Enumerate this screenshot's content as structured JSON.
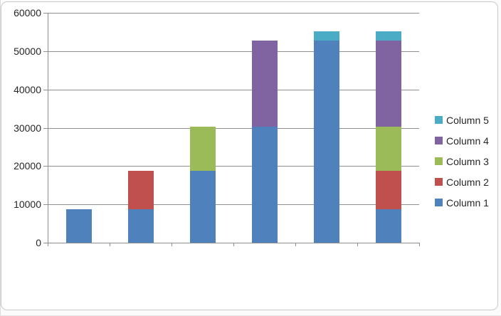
{
  "chart_data": {
    "type": "bar",
    "stacked": true,
    "title": "",
    "xlabel": "",
    "ylabel": "",
    "categories": [
      "",
      "",
      "",
      "",
      "",
      ""
    ],
    "series": [
      {
        "name": "Column 1",
        "color": "#4f81bd",
        "values": [
          8700,
          8700,
          18700,
          30200,
          52800,
          8700
        ]
      },
      {
        "name": "Column 2",
        "color": "#c0504d",
        "values": [
          0,
          10000,
          0,
          0,
          0,
          10000
        ]
      },
      {
        "name": "Column 3",
        "color": "#9bbb59",
        "values": [
          0,
          0,
          11500,
          0,
          0,
          11500
        ]
      },
      {
        "name": "Column 4",
        "color": "#8064a2",
        "values": [
          0,
          0,
          0,
          22600,
          0,
          22600
        ]
      },
      {
        "name": "Column 5",
        "color": "#4bacc6",
        "values": [
          0,
          0,
          0,
          0,
          2400,
          2400
        ]
      }
    ],
    "bar_totals": [
      8700,
      18700,
      30200,
      52800,
      55200,
      55200
    ],
    "ylim": [
      0,
      60000
    ],
    "ytick_step": 10000,
    "ytick_labels": [
      "0",
      "10000",
      "20000",
      "30000",
      "40000",
      "50000",
      "60000"
    ],
    "grid": true,
    "gridline_color": "#8f8f8f",
    "axis_color": "#8f8f8f",
    "text_color": "#262626",
    "legend": {
      "position": "right",
      "entries": [
        "Column 5",
        "Column 4",
        "Column 3",
        "Column 2",
        "Column 1"
      ]
    }
  }
}
